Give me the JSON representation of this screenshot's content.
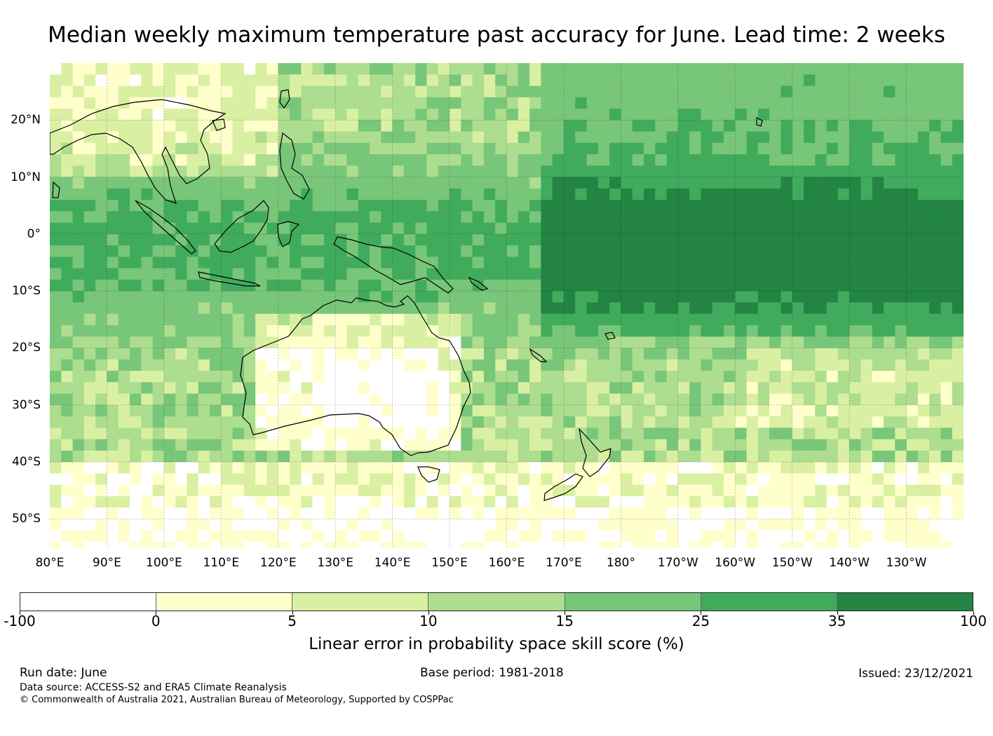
{
  "title": "Median weekly maximum temperature past accuracy for June. Lead time: 2 weeks",
  "map": {
    "region": "Pacific / Australia",
    "lon_range_deg_east": [
      80,
      240
    ],
    "lat_range": [
      -55,
      30
    ],
    "lat_labels": [
      "20°N",
      "10°N",
      "0°",
      "10°S",
      "20°S",
      "30°S",
      "40°S",
      "50°S"
    ],
    "lon_labels": [
      "80°E",
      "90°E",
      "100°E",
      "110°E",
      "120°E",
      "130°E",
      "140°E",
      "150°E",
      "160°E",
      "170°E",
      "180°",
      "170°W",
      "160°W",
      "150°W",
      "140°W",
      "130°W"
    ],
    "gridlines": true,
    "coastlines": true
  },
  "colorbar": {
    "label": "Linear error in probability space skill score (%)",
    "ticks": [
      "-100",
      "0",
      "5",
      "10",
      "15",
      "25",
      "35",
      "100"
    ],
    "colors": [
      "#ffffff",
      "#ffffcc",
      "#d9f0a3",
      "#addd8e",
      "#78c679",
      "#41ab5d",
      "#238443"
    ]
  },
  "footer": {
    "run_date": "Run date: June",
    "base_period": "Base period: 1981-2018",
    "issued": "Issued: 23/12/2021",
    "data_source": "Data source: ACCESS-S2 and ERA5 Climate Reanalysis",
    "copyright": "© Commonwealth of Australia 2021, Australian Bureau of Meteorology, Supported by COSPPac"
  }
}
